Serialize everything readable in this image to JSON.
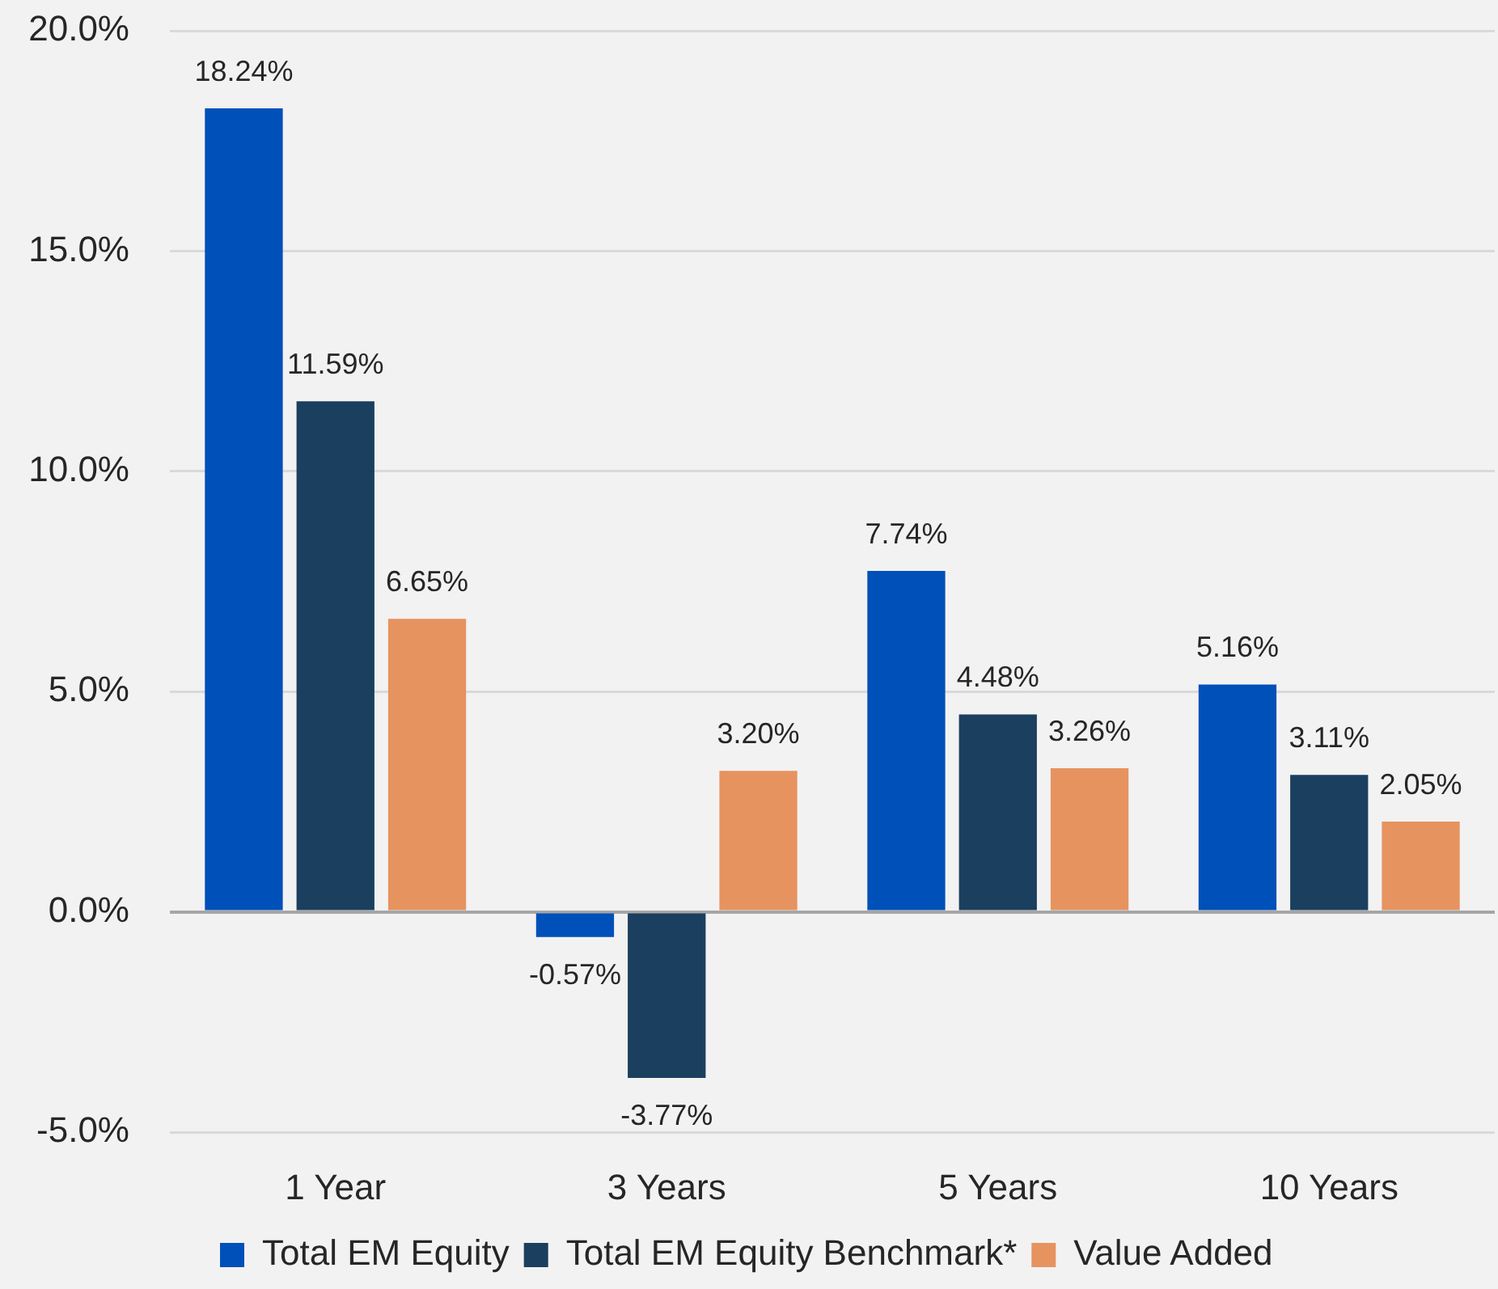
{
  "chart_data": {
    "type": "bar",
    "categories": [
      "1 Year",
      "3 Years",
      "5 Years",
      "10 Years"
    ],
    "series": [
      {
        "name": "Total EM Equity",
        "color": "#0050b9",
        "values": [
          18.24,
          -0.57,
          7.74,
          5.16
        ],
        "value_labels": [
          "18.24%",
          "-0.57%",
          "7.74%",
          "5.16%"
        ]
      },
      {
        "name": "Total EM Equity Benchmark*",
        "color": "#1b3f5f",
        "values": [
          11.59,
          -3.77,
          4.48,
          3.11
        ],
        "value_labels": [
          "11.59%",
          "-3.77%",
          "4.48%",
          "3.11%"
        ]
      },
      {
        "name": "Value Added",
        "color": "#e69360",
        "values": [
          6.65,
          3.2,
          3.26,
          2.05
        ],
        "value_labels": [
          "6.65%",
          "3.20%",
          "3.26%",
          "2.05%"
        ]
      }
    ],
    "ylim": [
      -5,
      20
    ],
    "yticks": [
      {
        "value": -5,
        "label": "-5.0%"
      },
      {
        "value": 0,
        "label": "0.0%"
      },
      {
        "value": 5,
        "label": "5.0%"
      },
      {
        "value": 10,
        "label": "10.0%"
      },
      {
        "value": 15,
        "label": "15.0%"
      },
      {
        "value": 20,
        "label": "20.0%"
      }
    ],
    "grid": "y",
    "legend": "bottom"
  }
}
